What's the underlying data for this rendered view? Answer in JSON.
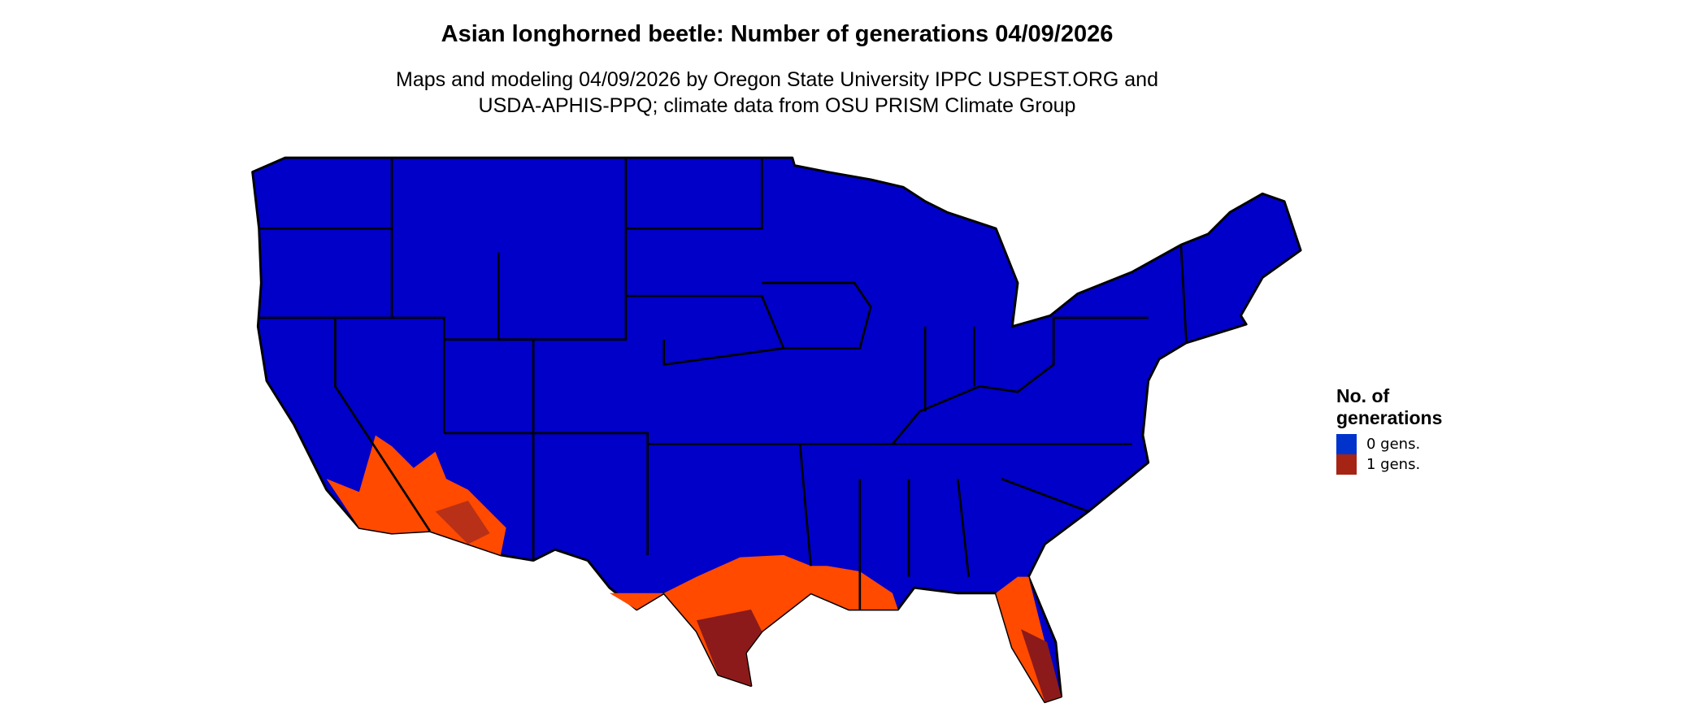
{
  "title": "Asian longhorned beetle: Number of generations 04/09/2026",
  "subtitle_line1": "Maps and modeling 04/09/2026 by Oregon State University IPPC USPEST.ORG and",
  "subtitle_line2": "USDA-APHIS-PPQ; climate data from OSU PRISM Climate Group",
  "legend": {
    "title": "No. of generations",
    "items": [
      {
        "label": "0 gens.",
        "color": "#0033cc"
      },
      {
        "label": "1 gens.",
        "color": "#a52414"
      }
    ]
  },
  "map_colors": {
    "zero_gens_fill": "#0000c8",
    "one_gen_light": "#ff4a00",
    "one_gen_mid": "#d23c14",
    "one_gen_dark": "#8c1a1a",
    "borders": "#000000"
  }
}
